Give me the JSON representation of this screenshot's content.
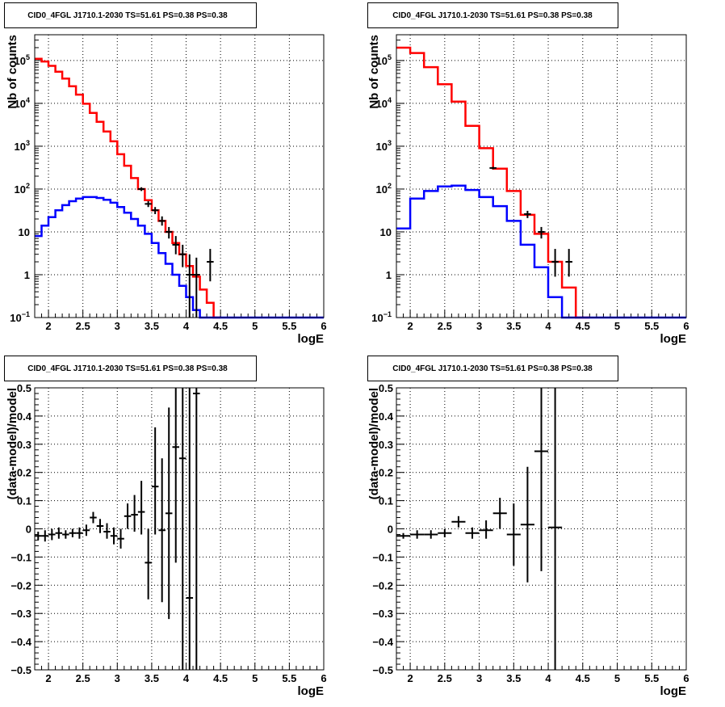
{
  "chart_data": [
    {
      "type": "line",
      "title": "CID0_4FGL J1710.1-2030 TS=51.61 PS=0.38 PS=0.38",
      "xlabel": "logE",
      "ylabel": "Nb of counts",
      "xlim": [
        1.8,
        6.0
      ],
      "ylim": [
        0.1,
        400000
      ],
      "yscale": "log",
      "grid": true,
      "xticks": [
        "2",
        "2.5",
        "3",
        "3.5",
        "4",
        "4.5",
        "5",
        "5.5",
        "6"
      ],
      "yticks": [
        {
          "v": 0.1,
          "base": "10",
          "exp": "−1"
        },
        {
          "v": 1,
          "label": "1"
        },
        {
          "v": 10,
          "label": "10"
        },
        {
          "v": 100,
          "base": "10",
          "exp": "2"
        },
        {
          "v": 1000,
          "base": "10",
          "exp": "3"
        },
        {
          "v": 10000,
          "base": "10",
          "exp": "4"
        },
        {
          "v": 100000,
          "base": "10",
          "exp": "5"
        }
      ],
      "edges": [
        1.8,
        1.9,
        2.0,
        2.1,
        2.2,
        2.3,
        2.4,
        2.5,
        2.6,
        2.7,
        2.8,
        2.9,
        3.0,
        3.1,
        3.2,
        3.3,
        3.4,
        3.5,
        3.6,
        3.7,
        3.8,
        3.9,
        4.0,
        4.1,
        4.2,
        4.3,
        4.4,
        4.5,
        4.6,
        4.7,
        4.8,
        4.9,
        5.0,
        5.1,
        5.2,
        5.3,
        5.4,
        5.5,
        5.6,
        5.7,
        5.8,
        5.9,
        6.0
      ],
      "series": [
        {
          "color": "#ff0000",
          "kind": "step",
          "values": [
            110000,
            95000,
            75000,
            55000,
            38000,
            25000,
            16000,
            9800,
            6000,
            3700,
            2200,
            1300,
            650,
            350,
            180,
            100,
            55,
            32,
            18,
            10,
            5.5,
            3,
            1.6,
            0.9,
            0.45,
            0.22,
            0.1,
            null,
            null,
            null,
            null,
            null,
            null,
            null,
            null,
            null,
            null,
            null,
            null,
            null,
            null,
            null
          ]
        },
        {
          "color": "#0000ff",
          "kind": "step",
          "values": [
            8,
            14,
            22,
            32,
            42,
            52,
            60,
            65,
            65,
            62,
            56,
            48,
            38,
            28,
            20,
            14,
            9,
            5.5,
            3.2,
            1.8,
            1.0,
            0.55,
            0.3,
            0.15,
            0.1,
            0.1,
            0.1,
            0.1,
            0.1,
            0.1,
            0.1,
            0.1,
            0.1,
            0.1,
            0.1,
            0.1,
            0.1,
            0.1,
            0.1,
            0.1,
            0.1,
            0.1
          ]
        },
        {
          "color": "#000000",
          "kind": "points",
          "points": [
            {
              "x": 3.35,
              "y": 100,
              "lo": 90,
              "hi": 110
            },
            {
              "x": 3.45,
              "y": 45,
              "lo": 38,
              "hi": 52
            },
            {
              "x": 3.55,
              "y": 32,
              "lo": 26,
              "hi": 38
            },
            {
              "x": 3.65,
              "y": 18,
              "lo": 14,
              "hi": 23
            },
            {
              "x": 3.75,
              "y": 10,
              "lo": 7,
              "hi": 13
            },
            {
              "x": 3.85,
              "y": 5,
              "lo": 3,
              "hi": 8
            },
            {
              "x": 3.95,
              "y": 3,
              "lo": 1.5,
              "hi": 5
            },
            {
              "x": 4.05,
              "y": 1,
              "lo": 0.1,
              "hi": 3
            },
            {
              "x": 4.15,
              "y": 1,
              "lo": 0.1,
              "hi": 2.5
            },
            {
              "x": 4.35,
              "y": 2,
              "lo": 0.7,
              "hi": 4
            }
          ]
        }
      ]
    },
    {
      "type": "line",
      "title": "CID0_4FGL J1710.1-2030 TS=51.61 PS=0.38 PS=0.38",
      "xlabel": "logE",
      "ylabel": "Nb of counts",
      "xlim": [
        1.8,
        6.0
      ],
      "ylim": [
        0.1,
        400000
      ],
      "yscale": "log",
      "grid": true,
      "xticks": [
        "2",
        "2.5",
        "3",
        "3.5",
        "4",
        "4.5",
        "5",
        "5.5",
        "6"
      ],
      "yticks": [
        {
          "v": 0.1,
          "base": "10",
          "exp": "−1"
        },
        {
          "v": 1,
          "label": "1"
        },
        {
          "v": 10,
          "label": "10"
        },
        {
          "v": 100,
          "base": "10",
          "exp": "2"
        },
        {
          "v": 1000,
          "base": "10",
          "exp": "3"
        },
        {
          "v": 10000,
          "base": "10",
          "exp": "4"
        },
        {
          "v": 100000,
          "base": "10",
          "exp": "5"
        }
      ],
      "edges": [
        1.8,
        2.0,
        2.2,
        2.4,
        2.6,
        2.8,
        3.0,
        3.2,
        3.4,
        3.6,
        3.8,
        4.0,
        4.2,
        4.4,
        4.6,
        4.8,
        5.0,
        5.2,
        5.4,
        5.6,
        5.8,
        6.0
      ],
      "series": [
        {
          "color": "#ff0000",
          "kind": "step",
          "values": [
            200000,
            150000,
            70000,
            28000,
            11000,
            3000,
            900,
            300,
            90,
            25,
            9,
            2,
            0.5,
            0.1,
            null,
            null,
            null,
            null,
            null,
            null,
            null
          ]
        },
        {
          "color": "#0000ff",
          "kind": "step",
          "values": [
            12,
            60,
            90,
            115,
            120,
            95,
            65,
            40,
            18,
            5,
            1.5,
            0.3,
            0.1,
            0.1,
            0.1,
            0.1,
            0.1,
            0.1,
            0.1,
            0.1,
            0.1
          ]
        },
        {
          "color": "#000000",
          "kind": "points",
          "points": [
            {
              "x": 3.2,
              "y": 310,
              "lo": 290,
              "hi": 330
            },
            {
              "x": 3.7,
              "y": 26,
              "lo": 21,
              "hi": 31
            },
            {
              "x": 3.9,
              "y": 10,
              "lo": 7,
              "hi": 13
            },
            {
              "x": 4.1,
              "y": 2,
              "lo": 0.9,
              "hi": 4
            },
            {
              "x": 4.3,
              "y": 2,
              "lo": 0.9,
              "hi": 4
            }
          ]
        }
      ]
    },
    {
      "type": "scatter",
      "title": "CID0_4FGL J1710.1-2030 TS=51.61 PS=0.38 PS=0.38",
      "xlabel": "logE",
      "ylabel": "(data-model)/model",
      "xlim": [
        1.8,
        6.0
      ],
      "ylim": [
        -0.5,
        0.5
      ],
      "grid": true,
      "xticks": [
        "2",
        "2.5",
        "3",
        "3.5",
        "4",
        "4.5",
        "5",
        "5.5",
        "6"
      ],
      "yticks": [
        "−0.5",
        "−0.4",
        "−0.3",
        "−0.2",
        "−0.1",
        "0",
        "0.1",
        "0.2",
        "0.3",
        "0.4",
        "0.5"
      ],
      "points": [
        {
          "x": 1.85,
          "y": -0.025,
          "lo": -0.04,
          "hi": -0.01
        },
        {
          "x": 1.95,
          "y": -0.025,
          "lo": -0.045,
          "hi": -0.005
        },
        {
          "x": 2.05,
          "y": -0.02,
          "lo": -0.04,
          "hi": 0.0
        },
        {
          "x": 2.15,
          "y": -0.015,
          "lo": -0.035,
          "hi": 0.005
        },
        {
          "x": 2.25,
          "y": -0.02,
          "lo": -0.035,
          "hi": -0.005
        },
        {
          "x": 2.35,
          "y": -0.015,
          "lo": -0.03,
          "hi": 0.0
        },
        {
          "x": 2.45,
          "y": -0.015,
          "lo": -0.035,
          "hi": 0.005
        },
        {
          "x": 2.55,
          "y": -0.005,
          "lo": -0.025,
          "hi": 0.015
        },
        {
          "x": 2.65,
          "y": 0.04,
          "lo": 0.02,
          "hi": 0.06
        },
        {
          "x": 2.75,
          "y": 0.01,
          "lo": -0.015,
          "hi": 0.035
        },
        {
          "x": 2.85,
          "y": -0.01,
          "lo": -0.035,
          "hi": 0.02
        },
        {
          "x": 2.95,
          "y": -0.025,
          "lo": -0.055,
          "hi": 0.005
        },
        {
          "x": 3.05,
          "y": -0.035,
          "lo": -0.07,
          "hi": 0.0
        },
        {
          "x": 3.15,
          "y": 0.045,
          "lo": 0.0,
          "hi": 0.09
        },
        {
          "x": 3.25,
          "y": 0.05,
          "lo": -0.01,
          "hi": 0.12
        },
        {
          "x": 3.35,
          "y": 0.06,
          "lo": -0.02,
          "hi": 0.17
        },
        {
          "x": 3.45,
          "y": -0.12,
          "lo": -0.25,
          "hi": 0.0
        },
        {
          "x": 3.55,
          "y": 0.15,
          "lo": -0.02,
          "hi": 0.36
        },
        {
          "x": 3.65,
          "y": -0.005,
          "lo": -0.26,
          "hi": 0.25
        },
        {
          "x": 3.75,
          "y": 0.055,
          "lo": -0.32,
          "hi": 0.43
        },
        {
          "x": 3.85,
          "y": 0.29,
          "lo": -0.12,
          "hi": 0.5
        },
        {
          "x": 3.95,
          "y": 0.25,
          "lo": -0.5,
          "hi": 0.5
        },
        {
          "x": 4.05,
          "y": -0.245,
          "lo": -0.5,
          "hi": 0.5
        },
        {
          "x": 4.15,
          "y": 0.48,
          "lo": -0.5,
          "hi": 0.5
        }
      ]
    },
    {
      "type": "scatter",
      "title": "CID0_4FGL J1710.1-2030 TS=51.61 PS=0.38 PS=0.38",
      "xlabel": "logE",
      "ylabel": "(data-model)/model",
      "xlim": [
        1.8,
        6.0
      ],
      "ylim": [
        -0.5,
        0.5
      ],
      "grid": true,
      "xticks": [
        "2",
        "2.5",
        "3",
        "3.5",
        "4",
        "4.5",
        "5",
        "5.5",
        "6"
      ],
      "yticks": [
        "−0.5",
        "−0.4",
        "−0.3",
        "−0.2",
        "−0.1",
        "0",
        "0.1",
        "0.2",
        "0.3",
        "0.4",
        "0.5"
      ],
      "points": [
        {
          "x": 1.9,
          "y": -0.025,
          "lo": -0.035,
          "hi": -0.015
        },
        {
          "x": 2.1,
          "y": -0.02,
          "lo": -0.035,
          "hi": -0.005
        },
        {
          "x": 2.3,
          "y": -0.02,
          "lo": -0.035,
          "hi": -0.005
        },
        {
          "x": 2.5,
          "y": -0.015,
          "lo": -0.03,
          "hi": 0.0
        },
        {
          "x": 2.7,
          "y": 0.025,
          "lo": 0.005,
          "hi": 0.045
        },
        {
          "x": 2.9,
          "y": -0.015,
          "lo": -0.035,
          "hi": 0.005
        },
        {
          "x": 3.1,
          "y": -0.005,
          "lo": -0.035,
          "hi": 0.03
        },
        {
          "x": 3.3,
          "y": 0.055,
          "lo": 0.0,
          "hi": 0.11
        },
        {
          "x": 3.5,
          "y": -0.02,
          "lo": -0.13,
          "hi": 0.09
        },
        {
          "x": 3.7,
          "y": 0.015,
          "lo": -0.19,
          "hi": 0.22
        },
        {
          "x": 3.9,
          "y": 0.275,
          "lo": -0.15,
          "hi": 0.5
        },
        {
          "x": 4.1,
          "y": 0.005,
          "lo": -0.5,
          "hi": 0.5
        }
      ]
    }
  ]
}
